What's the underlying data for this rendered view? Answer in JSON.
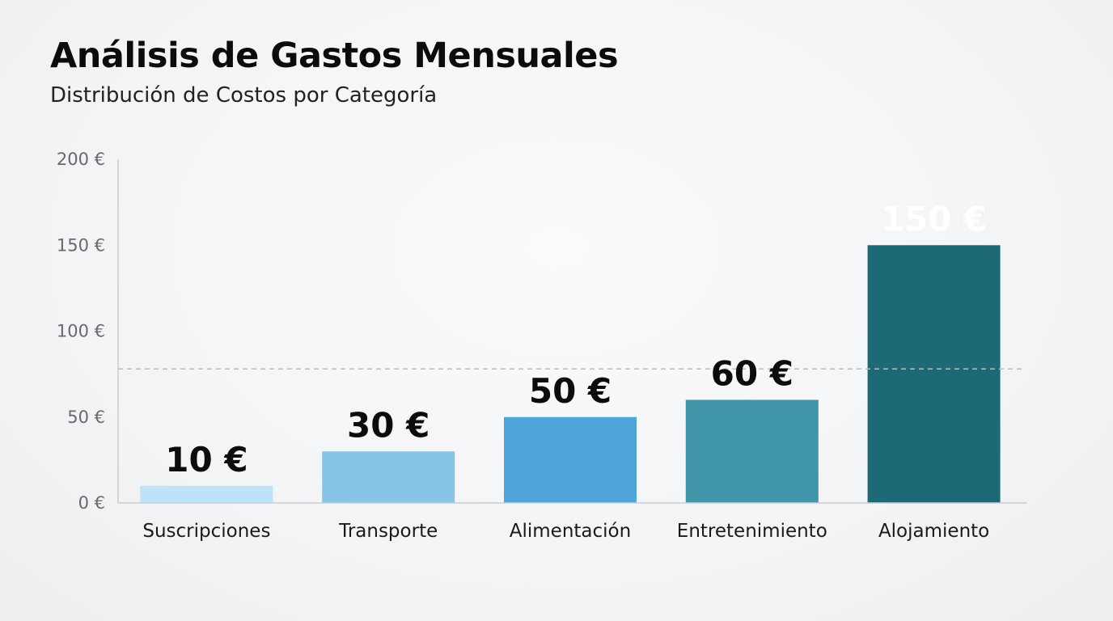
{
  "header": {
    "title": "Análisis de Gastos Mensuales",
    "subtitle": "Distribución de Costos por Categoría"
  },
  "chart_data": {
    "type": "bar",
    "title": "Análisis de Gastos Mensuales",
    "subtitle": "Distribución de Costos por Categoría",
    "categories": [
      "Suscripciones",
      "Transporte",
      "Alimentación",
      "Entretenimiento",
      "Alojamiento"
    ],
    "values": [
      10,
      30,
      50,
      60,
      150
    ],
    "value_labels": [
      "10 €",
      "30 €",
      "50 €",
      "60 €",
      "150 €"
    ],
    "xlabel": "",
    "ylabel": "",
    "ylim": [
      0,
      200
    ],
    "yticks": [
      0,
      50,
      100,
      150,
      200
    ],
    "ytick_labels": [
      "0 €",
      "50 €",
      "100 €",
      "150 €",
      "200 €"
    ],
    "reference_line": 78,
    "grid": false,
    "colors": [
      "#bce3f7",
      "#88c4e7",
      "#4fa4d9",
      "#4095a9",
      "#1d6a77"
    ],
    "value_label_colors": [
      "#0c0c0c",
      "#0c0c0c",
      "#0c0c0c",
      "#0c0c0c",
      "#ffffff"
    ]
  }
}
